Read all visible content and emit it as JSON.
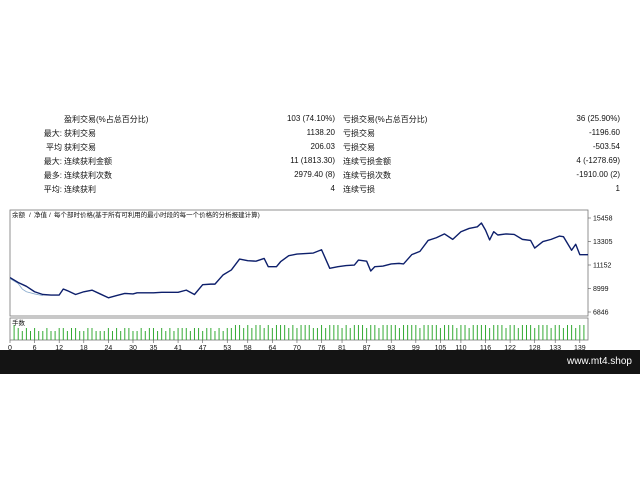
{
  "stats": [
    {
      "label1": "",
      "label2": "盈利交易(%占总百分比)",
      "value1": "103 (74.10%)",
      "label3": "亏损交易(%占总百分比)",
      "value2": "36 (25.90%)"
    },
    {
      "label1": "最大:",
      "label2": "获利交易",
      "value1": "1138.20",
      "label3": "亏损交易",
      "value2": "-1196.60"
    },
    {
      "label1": "平均",
      "label2": "获利交易",
      "value1": "206.03",
      "label3": "亏损交易",
      "value2": "-503.54"
    },
    {
      "label1": "最大:",
      "label2": "连续获利金额",
      "value1": "11 (1813.30)",
      "label3": "连续亏损金额",
      "value2": "4 (-1278.69)"
    },
    {
      "label1": "最多:",
      "label2": "连续获利次数",
      "value1": "2979.40 (8)",
      "label3": "连续亏损次数",
      "value2": "-1910.00 (2)"
    },
    {
      "label1": "平均:",
      "label2": "连续获利",
      "value1": "4",
      "label3": "连续亏损",
      "value2": "1"
    }
  ],
  "legend": {
    "balance": "余额",
    "separator1": "/",
    "equity": "净值",
    "separator2": "/",
    "description": "每个部时价格(基于所有可利用的最小时段的每一个价格的分析报建计算)"
  },
  "volume_label": "手数",
  "watermark": "www.mt4.shop",
  "colors": {
    "line": "#0d1f6b",
    "volume": "#33aa33",
    "thin_line": "#88aacc"
  },
  "chart_data": {
    "type": "line",
    "yticks": [
      "15458",
      "13305",
      "11152",
      "8999",
      "6846"
    ],
    "ylim": [
      6846,
      15458
    ],
    "xticks": [
      "0",
      "6",
      "12",
      "18",
      "24",
      "30",
      "35",
      "41",
      "47",
      "53",
      "58",
      "64",
      "70",
      "76",
      "81",
      "87",
      "93",
      "99",
      "105",
      "110",
      "116",
      "122",
      "128",
      "133",
      "139"
    ],
    "xlim": [
      0,
      141
    ],
    "balance": [
      [
        0,
        10000
      ],
      [
        2,
        9550
      ],
      [
        4,
        9200
      ],
      [
        6,
        8700
      ],
      [
        8,
        8450
      ],
      [
        10,
        8400
      ],
      [
        12,
        8400
      ],
      [
        13,
        8950
      ],
      [
        14,
        8800
      ],
      [
        16,
        8450
      ],
      [
        18,
        8700
      ],
      [
        20,
        8850
      ],
      [
        22,
        8500
      ],
      [
        24,
        8150
      ],
      [
        26,
        8350
      ],
      [
        28,
        8550
      ],
      [
        30,
        8500
      ],
      [
        31,
        8600
      ],
      [
        33,
        8600
      ],
      [
        35,
        8600
      ],
      [
        37,
        8650
      ],
      [
        39,
        8650
      ],
      [
        41,
        8650
      ],
      [
        43,
        8850
      ],
      [
        45,
        8450
      ],
      [
        47,
        9350
      ],
      [
        49,
        9400
      ],
      [
        50,
        9400
      ],
      [
        52,
        10250
      ],
      [
        54,
        10700
      ],
      [
        56,
        11700
      ],
      [
        58,
        11550
      ],
      [
        60,
        11500
      ],
      [
        62,
        11750
      ],
      [
        63,
        11000
      ],
      [
        65,
        11000
      ],
      [
        66,
        11450
      ],
      [
        68,
        12000
      ],
      [
        70,
        12150
      ],
      [
        72,
        12200
      ],
      [
        74,
        12250
      ],
      [
        76,
        12550
      ],
      [
        78,
        10850
      ],
      [
        80,
        11000
      ],
      [
        82,
        11100
      ],
      [
        84,
        11150
      ],
      [
        85,
        11600
      ],
      [
        87,
        11500
      ],
      [
        88,
        10600
      ],
      [
        89,
        11000
      ],
      [
        91,
        11050
      ],
      [
        93,
        11250
      ],
      [
        95,
        11300
      ],
      [
        96,
        11250
      ],
      [
        98,
        12100
      ],
      [
        100,
        12400
      ],
      [
        102,
        13400
      ],
      [
        104,
        13650
      ],
      [
        106,
        14000
      ],
      [
        108,
        13500
      ],
      [
        110,
        14200
      ],
      [
        112,
        14500
      ],
      [
        114,
        14650
      ],
      [
        115,
        15000
      ],
      [
        116,
        14350
      ],
      [
        117,
        13450
      ],
      [
        118,
        14200
      ],
      [
        119,
        13900
      ],
      [
        121,
        14000
      ],
      [
        123,
        13950
      ],
      [
        125,
        13500
      ],
      [
        127,
        13400
      ],
      [
        128,
        12700
      ],
      [
        130,
        13300
      ],
      [
        132,
        13500
      ],
      [
        134,
        13800
      ],
      [
        135,
        13750
      ],
      [
        137,
        12500
      ],
      [
        138,
        13050
      ],
      [
        139,
        12100
      ],
      [
        141,
        12100
      ],
      [
        143,
        12950
      ],
      [
        144,
        12950
      ]
    ],
    "equity": [
      [
        0,
        9900
      ],
      [
        2,
        9450
      ],
      [
        3,
        8950
      ],
      [
        4,
        8700
      ],
      [
        6,
        8500
      ],
      [
        8,
        8350
      ]
    ],
    "volume": [
      5,
      4,
      3,
      4,
      3,
      4,
      3,
      3,
      4,
      3,
      3,
      4,
      4,
      3,
      4,
      4,
      3,
      3,
      4,
      4,
      3,
      3,
      3,
      4,
      3,
      4,
      3,
      4,
      4,
      3,
      3,
      4,
      3,
      4,
      4,
      3,
      4,
      3,
      4,
      3,
      4,
      4,
      4,
      3,
      4,
      4,
      3,
      4,
      4,
      3,
      4,
      3,
      4,
      4,
      5,
      5,
      4,
      5,
      4,
      5,
      5,
      4,
      5,
      4,
      5,
      5,
      5,
      4,
      5,
      4,
      5,
      5,
      5,
      4,
      4,
      5,
      4,
      5,
      5,
      5,
      4,
      5,
      4,
      5,
      5,
      5,
      4,
      5,
      5,
      4,
      5,
      5,
      5,
      5,
      4,
      5,
      5,
      5,
      5,
      4,
      5,
      5,
      5,
      5,
      4,
      5,
      5,
      5,
      4,
      5,
      5,
      4,
      5,
      5,
      5,
      5,
      4,
      5,
      5,
      5,
      4,
      5,
      5,
      4,
      5,
      5,
      5,
      4,
      5,
      5,
      5,
      4,
      5,
      5,
      4,
      5,
      5,
      4,
      5,
      5
    ]
  }
}
